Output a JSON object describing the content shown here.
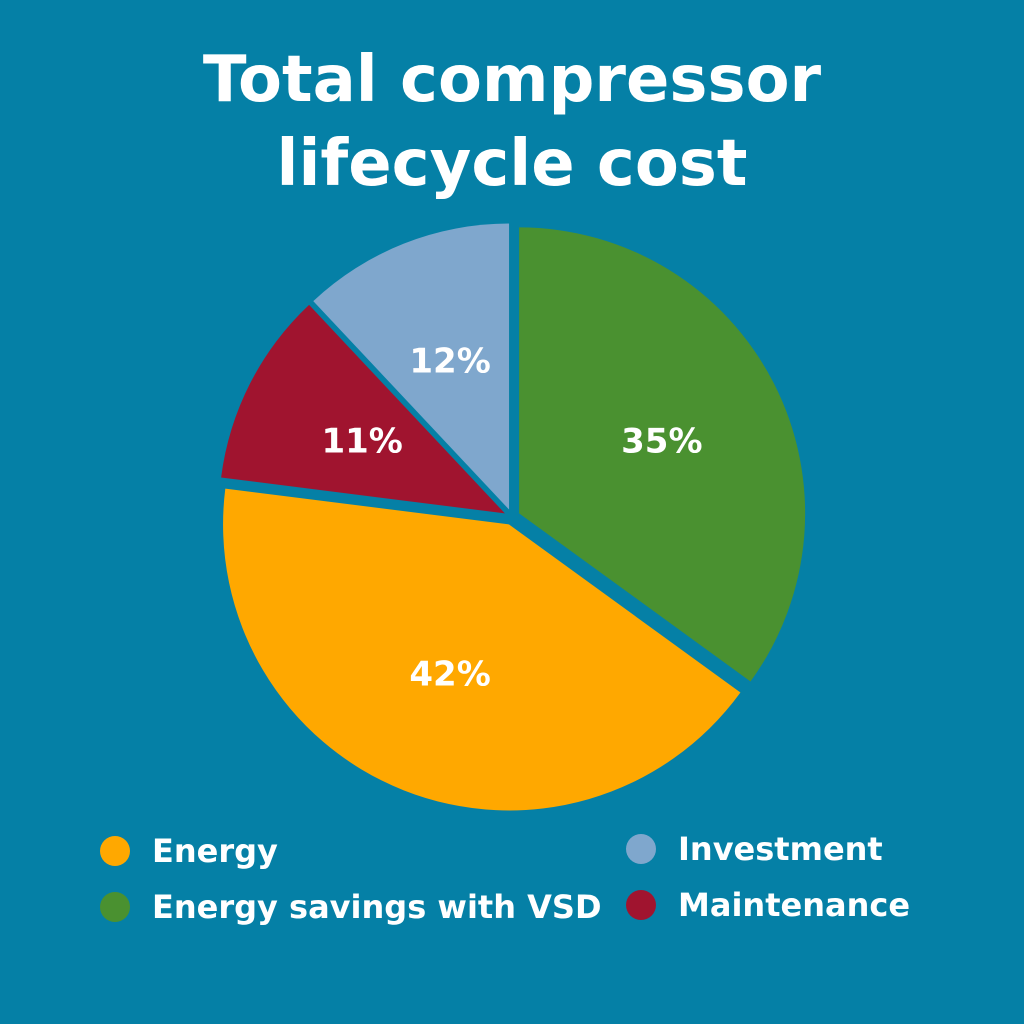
{
  "chart_data": {
    "type": "pie",
    "title_lines": [
      "Total compressor",
      "lifecycle cost"
    ],
    "start_angle": "top",
    "direction": "clockwise",
    "slices": [
      {
        "name": "Energy savings with VSD",
        "value": 35,
        "label": "35%",
        "color": "#4a9130"
      },
      {
        "name": "Energy",
        "value": 42,
        "label": "42%",
        "color": "#ffa800"
      },
      {
        "name": "Maintenance",
        "value": 11,
        "label": "11%",
        "color": "#a0142f"
      },
      {
        "name": "Investment",
        "value": 12,
        "label": "12%",
        "color": "#7fa7cd"
      }
    ],
    "legend": [
      {
        "name": "Energy",
        "color": "#ffa800"
      },
      {
        "name": "Energy savings with VSD",
        "color": "#4a9130"
      },
      {
        "name": "Investment",
        "color": "#7fa7cd"
      },
      {
        "name": "Maintenance",
        "color": "#a0142f"
      }
    ],
    "legend_placement": "bottom"
  }
}
